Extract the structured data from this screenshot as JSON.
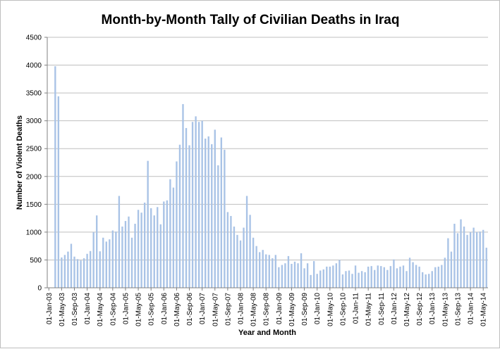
{
  "chart_data": {
    "type": "bar",
    "title": "Month-by-Month Tally of Civilian Deaths in Iraq",
    "xlabel": "Year and Month",
    "ylabel": "Number of Violent Deaths",
    "ylim": [
      0,
      4500
    ],
    "y_ticks": [
      0,
      500,
      1000,
      1500,
      2000,
      2500,
      3000,
      3500,
      4000,
      4500
    ],
    "grid": true,
    "legend": "none",
    "bar_color": "#a9c3e6",
    "x_tick_labels": [
      "01-Jan-03",
      "01-May-03",
      "01-Sep-03",
      "01-Jan-04",
      "01-May-04",
      "01-Sep-04",
      "01-Jan-05",
      "01-May-05",
      "01-Sep-05",
      "01-Jan-06",
      "01-May-06",
      "01-Sep-06",
      "01-Jan-07",
      "01-May-07",
      "01-Sep-07",
      "01-Jan-08",
      "01-May-08",
      "01-Sep-08",
      "01-Jan-09",
      "01-May-09",
      "01-Sep-09",
      "01-Jan-10",
      "01-May-10",
      "01-Sep-10",
      "01-Jan-11",
      "01-May-11",
      "01-Sep-11",
      "01-Jan-12",
      "01-May-12",
      "01-Sep-12",
      "01-Jan-13",
      "01-May-13",
      "01-Sep-13",
      "01-Jan-14",
      "01-May-14"
    ],
    "categories": [
      "Jan-03",
      "Feb-03",
      "Mar-03",
      "Apr-03",
      "May-03",
      "Jun-03",
      "Jul-03",
      "Aug-03",
      "Sep-03",
      "Oct-03",
      "Nov-03",
      "Dec-03",
      "Jan-04",
      "Feb-04",
      "Mar-04",
      "Apr-04",
      "May-04",
      "Jun-04",
      "Jul-04",
      "Aug-04",
      "Sep-04",
      "Oct-04",
      "Nov-04",
      "Dec-04",
      "Jan-05",
      "Feb-05",
      "Mar-05",
      "Apr-05",
      "May-05",
      "Jun-05",
      "Jul-05",
      "Aug-05",
      "Sep-05",
      "Oct-05",
      "Nov-05",
      "Dec-05",
      "Jan-06",
      "Feb-06",
      "Mar-06",
      "Apr-06",
      "May-06",
      "Jun-06",
      "Jul-06",
      "Aug-06",
      "Sep-06",
      "Oct-06",
      "Nov-06",
      "Dec-06",
      "Jan-07",
      "Feb-07",
      "Mar-07",
      "Apr-07",
      "May-07",
      "Jun-07",
      "Jul-07",
      "Aug-07",
      "Sep-07",
      "Oct-07",
      "Nov-07",
      "Dec-07",
      "Jan-08",
      "Feb-08",
      "Mar-08",
      "Apr-08",
      "May-08",
      "Jun-08",
      "Jul-08",
      "Aug-08",
      "Sep-08",
      "Oct-08",
      "Nov-08",
      "Dec-08",
      "Jan-09",
      "Feb-09",
      "Mar-09",
      "Apr-09",
      "May-09",
      "Jun-09",
      "Jul-09",
      "Aug-09",
      "Sep-09",
      "Oct-09",
      "Nov-09",
      "Dec-09",
      "Jan-10",
      "Feb-10",
      "Mar-10",
      "Apr-10",
      "May-10",
      "Jun-10",
      "Jul-10",
      "Aug-10",
      "Sep-10",
      "Oct-10",
      "Nov-10",
      "Dec-10",
      "Jan-11",
      "Feb-11",
      "Mar-11",
      "Apr-11",
      "May-11",
      "Jun-11",
      "Jul-11",
      "Aug-11",
      "Sep-11",
      "Oct-11",
      "Nov-11",
      "Dec-11",
      "Jan-12",
      "Feb-12",
      "Mar-12",
      "Apr-12",
      "May-12",
      "Jun-12",
      "Jul-12",
      "Aug-12",
      "Sep-12",
      "Oct-12",
      "Nov-12",
      "Dec-12",
      "Jan-13",
      "Feb-13",
      "Mar-13",
      "Apr-13",
      "May-13",
      "Jun-13",
      "Jul-13",
      "Aug-13",
      "Sep-13",
      "Oct-13",
      "Nov-13",
      "Dec-13",
      "Jan-14",
      "Feb-14",
      "Mar-14",
      "Apr-14",
      "May-14",
      "Jun-14"
    ],
    "values": [
      3,
      2,
      3980,
      3440,
      545,
      590,
      650,
      790,
      560,
      515,
      490,
      530,
      610,
      660,
      1000,
      1300,
      655,
      900,
      830,
      870,
      1030,
      1010,
      1650,
      1100,
      1200,
      1280,
      900,
      1150,
      1400,
      1350,
      1530,
      2280,
      1430,
      1300,
      1450,
      1140,
      1550,
      1570,
      1950,
      1800,
      2270,
      2570,
      3300,
      2870,
      2560,
      2980,
      3080,
      2980,
      3000,
      2680,
      2720,
      2580,
      2840,
      2200,
      2700,
      2480,
      1360,
      1290,
      1100,
      950,
      850,
      1080,
      1650,
      1310,
      900,
      750,
      640,
      680,
      600,
      590,
      530,
      590,
      370,
      410,
      440,
      570,
      430,
      470,
      440,
      620,
      350,
      440,
      230,
      480,
      250,
      310,
      330,
      380,
      380,
      400,
      440,
      500,
      240,
      300,
      310,
      250,
      400,
      270,
      300,
      280,
      380,
      390,
      320,
      400,
      390,
      370,
      320,
      390,
      510,
      350,
      380,
      400,
      300,
      540,
      460,
      410,
      380,
      280,
      240,
      250,
      300,
      370,
      380,
      410,
      540,
      890,
      650,
      1150,
      980,
      1230,
      1100,
      950,
      1000,
      1080,
      1000,
      1010,
      1040,
      720
    ]
  }
}
